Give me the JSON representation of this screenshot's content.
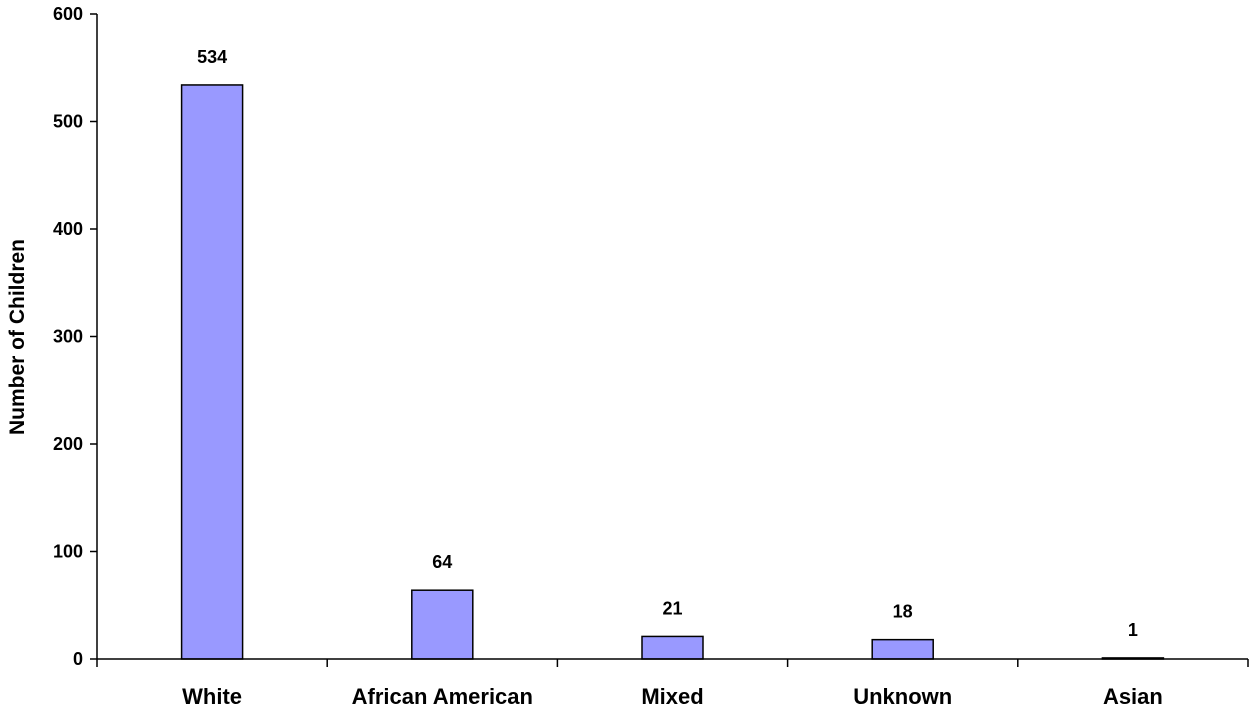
{
  "chart_data": {
    "type": "bar",
    "title": "",
    "xlabel": "",
    "ylabel": "Number of Children",
    "categories": [
      "White",
      "African American",
      "Mixed",
      "Unknown",
      "Asian"
    ],
    "values": [
      534,
      64,
      21,
      18,
      1
    ],
    "data_labels": [
      "534",
      "64",
      "21",
      "18",
      "1"
    ],
    "ylim": [
      0,
      600
    ],
    "yticks": [
      0,
      100,
      200,
      300,
      400,
      500,
      600
    ],
    "ytick_labels": [
      "0",
      "100",
      "200",
      "300",
      "400",
      "500",
      "600"
    ],
    "grid": false,
    "legend": "none",
    "bar_color": "#9999FF",
    "bar_edge_color": "#000000"
  }
}
